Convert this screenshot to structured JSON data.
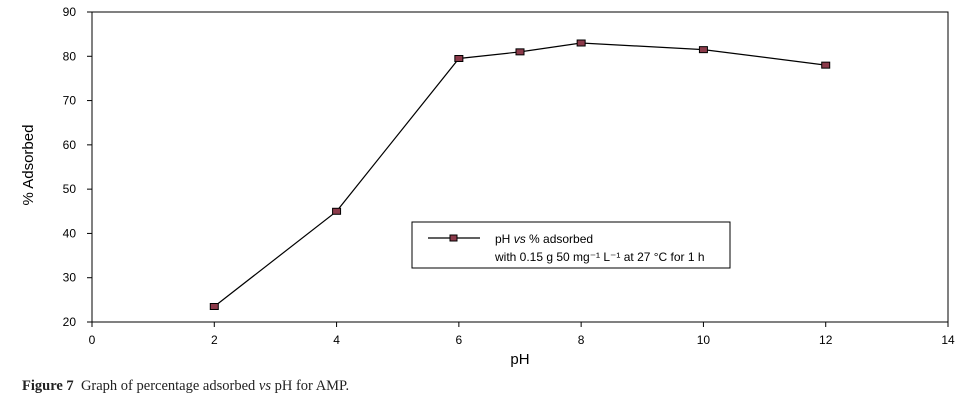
{
  "chart_data": {
    "type": "line",
    "xlabel": "pH",
    "ylabel": "% Adsorbed",
    "xlim": [
      0,
      14
    ],
    "ylim": [
      20,
      90
    ],
    "xticks": [
      "0",
      "2",
      "4",
      "6",
      "8",
      "10",
      "12",
      "14"
    ],
    "yticks": [
      "20",
      "30",
      "40",
      "50",
      "60",
      "70",
      "80",
      "90"
    ],
    "grid": false,
    "legend_placement": "center-right",
    "series": [
      {
        "name_parts": [
          "pH ",
          "vs",
          " % adsorbed"
        ],
        "name_line2": "with 0.15 g 50 mg⁻¹ L⁻¹ at 27 °C for 1 h",
        "x": [
          2,
          4,
          6,
          7,
          8,
          10,
          12
        ],
        "y": [
          23.5,
          45,
          79.5,
          81,
          83,
          81.5,
          78
        ],
        "color": "#000000",
        "marker_fill": "#8b3a4a"
      }
    ]
  },
  "caption": {
    "label": "Figure 7",
    "text_before": "Graph of percentage adsorbed ",
    "text_italic": "vs",
    "text_after": " pH for AMP."
  }
}
